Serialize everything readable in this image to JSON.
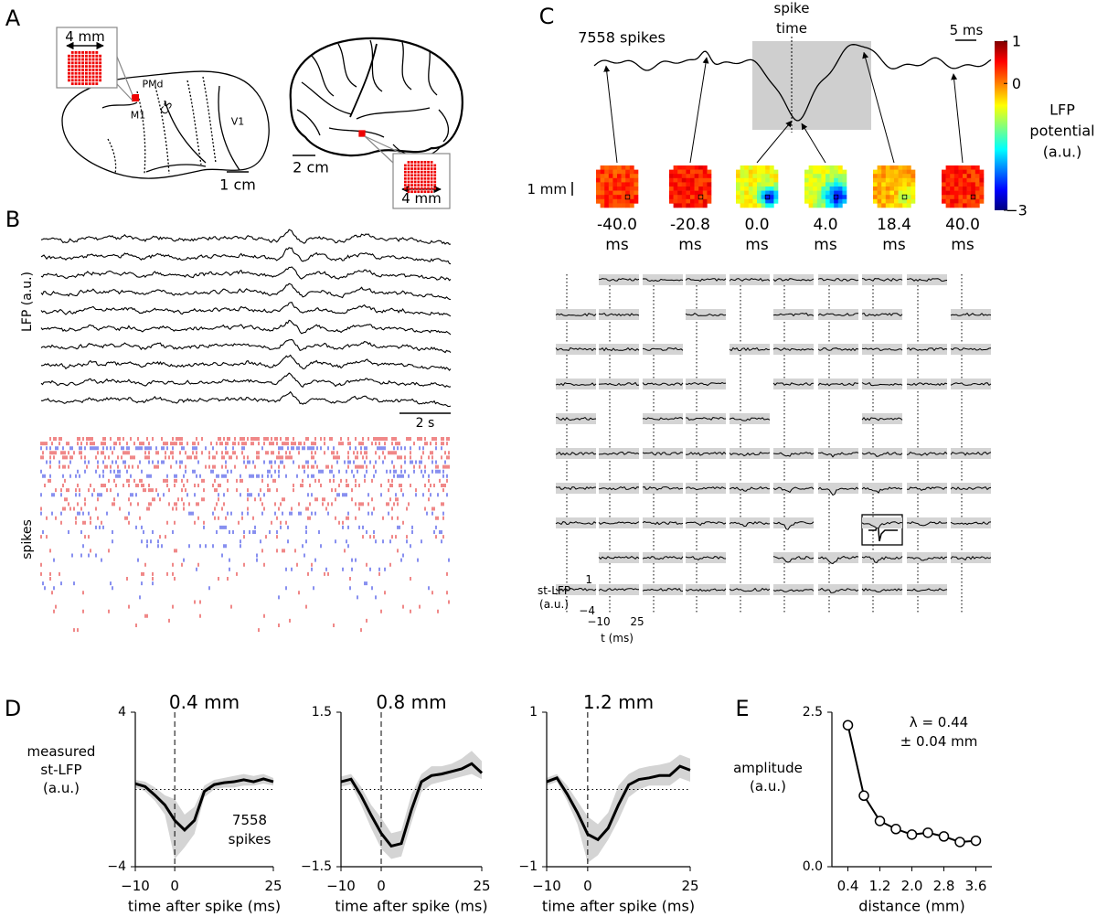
{
  "panel_labels": [
    "A",
    "B",
    "C",
    "D",
    "E"
  ],
  "panel_a": {
    "inset_scale": "4 mm",
    "areas": [
      "PMd",
      "M1",
      "CS",
      "V1"
    ],
    "monkey_scale": "1 cm",
    "human_scale": "2 cm",
    "human_inset_scale": "4 mm"
  },
  "panel_b": {
    "lfp_label": "LFP (a.u.)",
    "time_scale": "2 s",
    "spikes_label": "spikes"
  },
  "panel_c": {
    "spike_count": "7558 spikes",
    "spike_time": [
      "spike",
      "time"
    ],
    "time_scale": "5 ms",
    "space_scale": "1 mm",
    "snapshots": [
      {
        "time": "-40.0",
        "unit": "ms"
      },
      {
        "time": "-20.8",
        "unit": "ms"
      },
      {
        "time": "0.0",
        "unit": "ms"
      },
      {
        "time": "4.0",
        "unit": "ms"
      },
      {
        "time": "18.4",
        "unit": "ms"
      },
      {
        "time": "40.0",
        "unit": "ms"
      }
    ],
    "colorbar": {
      "label": [
        "LFP",
        "potential",
        "(a.u.)"
      ],
      "range": [
        -3,
        1
      ],
      "ticks": [
        1,
        0,
        {
          "value": -3,
          "label": "−3"
        }
      ]
    },
    "grid_legend": {
      "ylabel": [
        "st-LFP",
        "(a.u.)"
      ],
      "yticks": [
        "1",
        "−4"
      ],
      "xticks": [
        "−10",
        "25"
      ],
      "xlabel": "t (ms)"
    }
  },
  "chart_data": [
    {
      "type": "line",
      "title": "0.4 mm",
      "ylabel": [
        "measured",
        "st-LFP",
        "(a.u.)"
      ],
      "xlabel": "time after spike (ms)",
      "x": [
        -10,
        -7.5,
        -5,
        -2.5,
        0,
        2.5,
        5,
        7.5,
        10,
        12.5,
        15,
        17.5,
        20,
        22.5,
        25
      ],
      "values": [
        0.3,
        0.15,
        -0.3,
        -0.8,
        -1.6,
        -2.1,
        -1.6,
        -0.1,
        0.25,
        0.35,
        0.4,
        0.5,
        0.4,
        0.55,
        0.4
      ],
      "band_upper": [
        0.5,
        0.4,
        0.1,
        -0.3,
        -0.5,
        -1.3,
        -0.9,
        0.2,
        0.5,
        0.6,
        0.7,
        0.8,
        0.7,
        0.8,
        0.6
      ],
      "band_lower": [
        0.1,
        -0.1,
        -0.6,
        -1.3,
        -3.6,
        -3.0,
        -2.3,
        -0.4,
        0,
        0.1,
        0.1,
        0.2,
        0.2,
        0.3,
        0.2
      ],
      "color": "#000000",
      "band_color": "#d4d4d4",
      "ref_x": 0,
      "ref_y": 0,
      "xlim": [
        -10,
        25
      ],
      "xticks": [
        {
          "value": -10,
          "label": "−10"
        },
        0,
        25
      ],
      "ylim": [
        -4,
        4
      ],
      "yticks": [
        {
          "value": -4,
          "label": "−4"
        },
        4
      ],
      "annotation": [
        "7558",
        "spikes"
      ]
    },
    {
      "type": "line",
      "title": "0.8 mm",
      "xlabel": "time after spike (ms)",
      "x": [
        -10,
        -7.5,
        -5,
        -2.5,
        0,
        2.5,
        5,
        7.5,
        10,
        12.5,
        15,
        17.5,
        20,
        22.5,
        25
      ],
      "values": [
        0.15,
        0.2,
        -0.12,
        -0.5,
        -0.85,
        -1.1,
        -1.05,
        -0.4,
        0.15,
        0.27,
        0.3,
        0.35,
        0.4,
        0.5,
        0.32
      ],
      "band_upper": [
        0.25,
        0.3,
        0.05,
        -0.3,
        -0.55,
        -0.85,
        -0.8,
        -0.1,
        0.3,
        0.45,
        0.45,
        0.5,
        0.6,
        0.75,
        0.55
      ],
      "band_lower": [
        0.05,
        0.1,
        -0.3,
        -0.75,
        -1.15,
        -1.35,
        -1.3,
        -0.65,
        -0.05,
        0.1,
        0.15,
        0.2,
        0.25,
        0.3,
        0.2
      ],
      "color": "#000000",
      "band_color": "#d4d4d4",
      "ref_x": 0,
      "ref_y": 0,
      "xlim": [
        -10,
        25
      ],
      "xticks": [
        {
          "value": -10,
          "label": "−10"
        },
        0,
        25
      ],
      "ylim": [
        -1.5,
        1.5
      ],
      "yticks": [
        {
          "value": -1.5,
          "label": "−1.5"
        },
        1.5
      ]
    },
    {
      "type": "line",
      "title": "1.2 mm",
      "xlabel": "time after spike (ms)",
      "x": [
        -10,
        -7.5,
        -5,
        -2.5,
        0,
        2.5,
        5,
        7.5,
        10,
        12.5,
        15,
        17.5,
        20,
        22.5,
        25
      ],
      "values": [
        0.1,
        0.15,
        -0.06,
        -0.3,
        -0.58,
        -0.65,
        -0.5,
        -0.2,
        0.06,
        0.13,
        0.15,
        0.18,
        0.18,
        0.3,
        0.25
      ],
      "band_upper": [
        0.15,
        0.2,
        0.05,
        -0.15,
        -0.35,
        -0.45,
        -0.3,
        0.05,
        0.2,
        0.27,
        0.3,
        0.32,
        0.35,
        0.45,
        0.4
      ],
      "band_lower": [
        0.05,
        0.1,
        -0.15,
        -0.45,
        -0.95,
        -0.85,
        -0.65,
        -0.4,
        -0.1,
        0,
        0.05,
        0.05,
        0.05,
        0.15,
        0.1
      ],
      "color": "#000000",
      "band_color": "#d4d4d4",
      "ref_x": 0,
      "ref_y": 0,
      "xlim": [
        -10,
        25
      ],
      "xticks": [
        {
          "value": -10,
          "label": "−10"
        },
        0,
        25
      ],
      "ylim": [
        -1,
        1
      ],
      "yticks": [
        {
          "value": -1,
          "label": "−1"
        },
        1
      ]
    },
    {
      "type": "line",
      "markers": true,
      "xlabel": "distance (mm)",
      "ylabel": [
        "amplitude",
        "(a.u.)"
      ],
      "x": [
        0.4,
        0.8,
        1.2,
        1.6,
        2.0,
        2.4,
        2.8,
        3.2,
        3.6
      ],
      "values": [
        2.29,
        1.15,
        0.74,
        0.61,
        0.52,
        0.55,
        0.49,
        0.4,
        0.42
      ],
      "color": "#000000",
      "xlim": [
        0,
        4
      ],
      "xticks": [
        0.4,
        1.2,
        {
          "value": 2,
          "label": "2.0"
        },
        2.8,
        3.6
      ],
      "ylim": [
        0,
        2.5
      ],
      "yticks": [
        {
          "value": 0,
          "label": "0.0"
        },
        2.5
      ],
      "annotation": [
        "λ = 0.44",
        "± 0.04 mm"
      ]
    }
  ]
}
